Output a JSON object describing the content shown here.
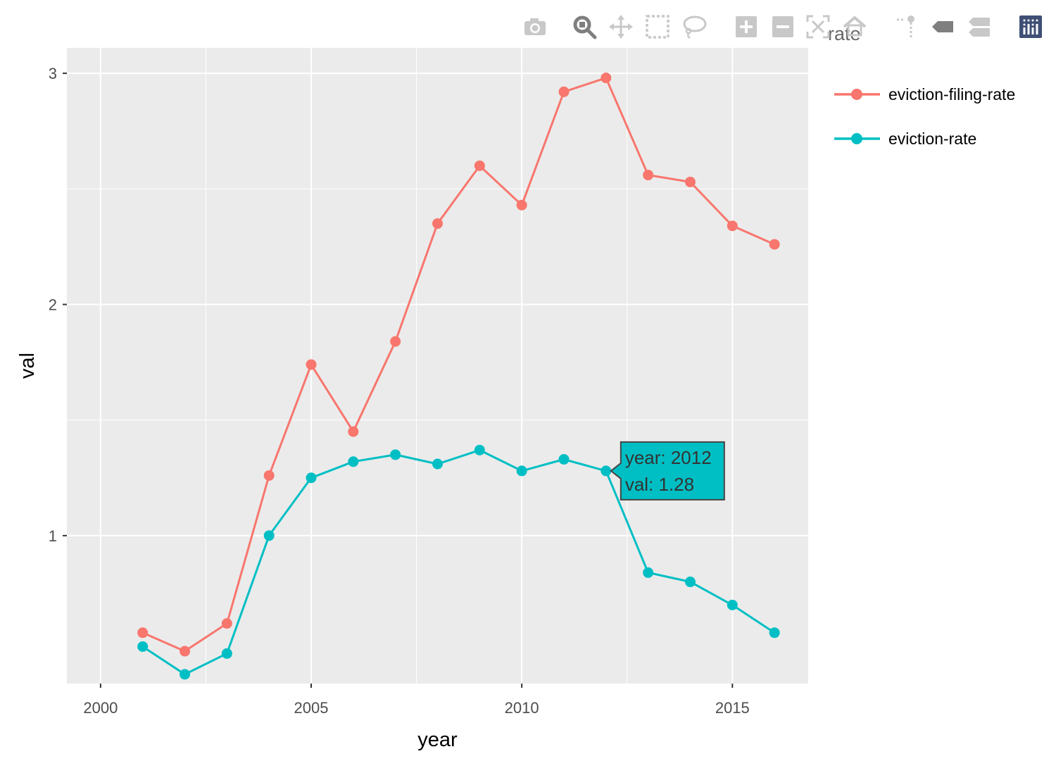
{
  "chart_data": {
    "type": "line",
    "xlabel": "year",
    "ylabel": "val",
    "xlim": [
      1999.2,
      2016.8
    ],
    "ylim": [
      0.36,
      3.11
    ],
    "xticks": [
      2000,
      2005,
      2010,
      2015
    ],
    "yticks": [
      1,
      2,
      3
    ],
    "grid": true,
    "legend_title": "rate",
    "legend_position": "right",
    "series": [
      {
        "name": "eviction-filing-rate",
        "color": "#F8766D",
        "x": [
          2001,
          2002,
          2003,
          2004,
          2005,
          2006,
          2007,
          2008,
          2009,
          2010,
          2011,
          2012,
          2013,
          2014,
          2015,
          2016
        ],
        "y": [
          0.58,
          0.5,
          0.62,
          1.26,
          1.74,
          1.45,
          1.84,
          2.35,
          2.6,
          2.43,
          2.92,
          2.98,
          2.56,
          2.53,
          2.34,
          2.26
        ]
      },
      {
        "name": "eviction-rate",
        "color": "#00BFC4",
        "x": [
          2001,
          2002,
          2003,
          2004,
          2005,
          2006,
          2007,
          2008,
          2009,
          2010,
          2011,
          2012,
          2013,
          2014,
          2015,
          2016
        ],
        "y": [
          0.52,
          0.4,
          0.49,
          1.0,
          1.25,
          1.32,
          1.35,
          1.31,
          1.37,
          1.28,
          1.33,
          1.28,
          0.84,
          0.8,
          0.7,
          0.58
        ]
      }
    ],
    "tooltip": {
      "series": "eviction-rate",
      "x": 2012,
      "y": 1.28,
      "line1": "year: 2012",
      "line2": "val: 1.28"
    }
  },
  "modebar": {
    "buttons": [
      {
        "name": "camera-icon"
      },
      {
        "name": "zoom-icon"
      },
      {
        "name": "pan-icon"
      },
      {
        "name": "box-select-icon"
      },
      {
        "name": "lasso-select-icon"
      },
      {
        "name": "zoom-in-icon"
      },
      {
        "name": "zoom-out-icon"
      },
      {
        "name": "autoscale-icon"
      },
      {
        "name": "reset-axes-icon"
      },
      {
        "name": "spike-lines-icon"
      },
      {
        "name": "hover-closest-icon"
      },
      {
        "name": "hover-compare-icon"
      },
      {
        "name": "plotly-logo-icon"
      }
    ]
  },
  "colors": {
    "panel_bg": "#EBEBEB",
    "grid": "#FFFFFF",
    "modebar_icon": "#C8C8C8",
    "modebar_active": "#7F7F7F",
    "plotly_logo": "#3F4F75"
  }
}
